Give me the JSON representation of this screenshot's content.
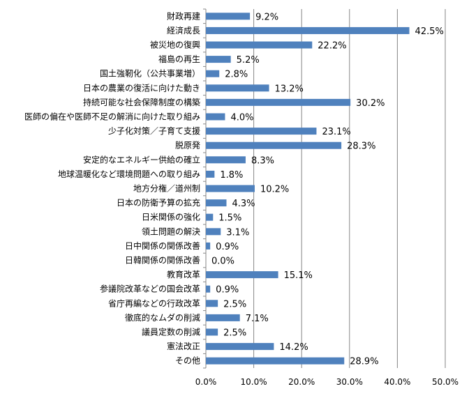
{
  "chart_data": {
    "type": "bar",
    "orientation": "horizontal",
    "title": "",
    "xlabel": "",
    "ylabel": "",
    "xlim": [
      0,
      50
    ],
    "x_ticks": [
      "0.0%",
      "10.0%",
      "20.0%",
      "30.0%",
      "40.0%",
      "50.0%"
    ],
    "grid": "vertical",
    "legend": "none",
    "bar_color": "#4F81BD",
    "grid_color": "#868686",
    "categories": [
      "財政再建",
      "経済成長",
      "被災地の復興",
      "福島の再生",
      "国土強靭化（公共事業増）",
      "日本の農業の復活に向けた動き",
      "持続可能な社会保障制度の構築",
      "医師の偏在や医師不足の解消に向けた取り組み",
      "少子化対策／子育て支援",
      "脱原発",
      "安定的なエネルギー供給の確立",
      "地球温暖化など環境問題への取り組み",
      "地方分権／道州制",
      "日本の防衛予算の拡充",
      "日米関係の強化",
      "領土問題の解決",
      "日中関係の関係改善",
      "日韓関係の関係改善",
      "教育改革",
      "参議院改革などの国会改革",
      "省庁再編などの行政改革",
      "徹底的なムダの削減",
      "議員定数の削減",
      "憲法改正",
      "その他"
    ],
    "values": [
      9.2,
      42.5,
      22.2,
      5.2,
      2.8,
      13.2,
      30.2,
      4.0,
      23.1,
      28.3,
      8.3,
      1.8,
      10.2,
      4.3,
      1.5,
      3.1,
      0.9,
      0.0,
      15.1,
      0.9,
      2.5,
      7.1,
      2.5,
      14.2,
      28.9
    ],
    "data_labels": [
      "9.2%",
      "42.5%",
      "22.2%",
      "5.2%",
      "2.8%",
      "13.2%",
      "30.2%",
      "4.0%",
      "23.1%",
      "28.3%",
      "8.3%",
      "1.8%",
      "10.2%",
      "4.3%",
      "1.5%",
      "3.1%",
      "0.9%",
      "0.0%",
      "15.1%",
      "0.9%",
      "2.5%",
      "7.1%",
      "2.5%",
      "14.2%",
      "28.9%"
    ]
  }
}
